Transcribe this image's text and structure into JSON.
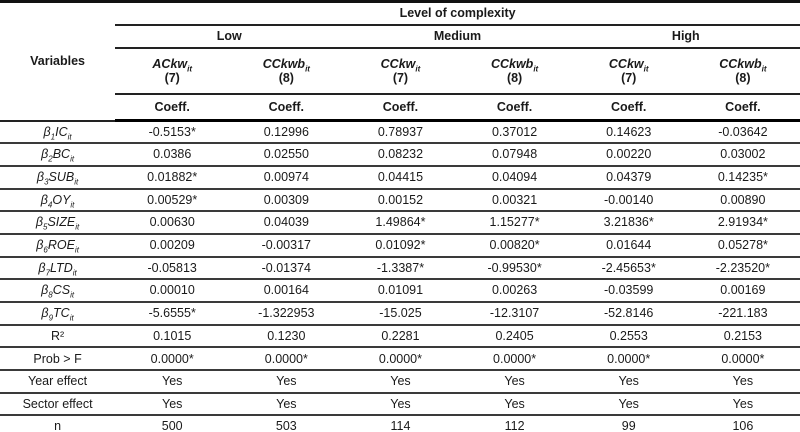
{
  "table": {
    "title": "Level of complexity",
    "variables_header": "Variables",
    "coeff_label": "Coeff.",
    "groups": [
      {
        "label": "Low"
      },
      {
        "label": "Medium"
      },
      {
        "label": "High"
      }
    ],
    "columns": [
      {
        "model": "ACkw",
        "sub": "it",
        "num": "(7)"
      },
      {
        "model": "CCkwb",
        "sub": "it",
        "num": "(8)"
      },
      {
        "model": "CCkw",
        "sub": "it",
        "num": "(7)"
      },
      {
        "model": "CCkwb",
        "sub": "it",
        "num": "(8)"
      },
      {
        "model": "CCkw",
        "sub": "it",
        "num": "(7)"
      },
      {
        "model": "CCkwb",
        "sub": "it",
        "num": "(8)"
      }
    ],
    "rows": [
      {
        "beta": "β",
        "idx": "1",
        "name": "IC",
        "sub": "it",
        "values": [
          "-0.5153*",
          "0.12996",
          "0.78937",
          "0.37012",
          "0.14623",
          "-0.03642"
        ]
      },
      {
        "beta": "β",
        "idx": "2",
        "name": "BC",
        "sub": "it",
        "values": [
          "0.0386",
          "0.02550",
          "0.08232",
          "0.07948",
          "0.00220",
          "0.03002"
        ]
      },
      {
        "beta": "β",
        "idx": "3",
        "name": "SUB",
        "sub": "it",
        "values": [
          "0.01882*",
          "0.00974",
          "0.04415",
          "0.04094",
          "0.04379",
          "0.14235*"
        ]
      },
      {
        "beta": "β",
        "idx": "4",
        "name": "OY",
        "sub": "it",
        "values": [
          "0.00529*",
          "0.00309",
          "0.00152",
          "0.00321",
          "-0.00140",
          "0.00890"
        ]
      },
      {
        "beta": "β",
        "idx": "5",
        "name": "SIZE",
        "sub": "it",
        "values": [
          "0.00630",
          "0.04039",
          "1.49864*",
          "1.15277*",
          "3.21836*",
          "2.91934*"
        ]
      },
      {
        "beta": "β",
        "idx": "6",
        "name": "ROE",
        "sub": "it",
        "values": [
          "0.00209",
          "-0.00317",
          "0.01092*",
          "0.00820*",
          "0.01644",
          "0.05278*"
        ]
      },
      {
        "beta": "β",
        "idx": "7",
        "name": "LTD",
        "sub": "it",
        "values": [
          "-0.05813",
          "-0.01374",
          "-1.3387*",
          "-0.99530*",
          "-2.45653*",
          "-2.23520*"
        ]
      },
      {
        "beta": "β",
        "idx": "8",
        "name": "CS",
        "sub": "it",
        "values": [
          "0.00010",
          "0.00164",
          "0.01091",
          "0.00263",
          "-0.03599",
          "0.00169"
        ]
      },
      {
        "beta": "β",
        "idx": "9",
        "name": "TC",
        "sub": "it",
        "values": [
          "-5.6555*",
          "-1.322953",
          "-15.025",
          "-12.3107",
          "-52.8146",
          "-221.183"
        ]
      },
      {
        "plain": "R²",
        "values": [
          "0.1015",
          "0.1230",
          "0.2281",
          "0.2405",
          "0.2553",
          "0.2153"
        ]
      },
      {
        "plain": "Prob > F",
        "values": [
          "0.0000*",
          "0.0000*",
          "0.0000*",
          "0.0000*",
          "0.0000*",
          "0.0000*"
        ]
      },
      {
        "plain": "Year effect",
        "values": [
          "Yes",
          "Yes",
          "Yes",
          "Yes",
          "Yes",
          "Yes"
        ]
      },
      {
        "plain": "Sector effect",
        "values": [
          "Yes",
          "Yes",
          "Yes",
          "Yes",
          "Yes",
          "Yes"
        ]
      },
      {
        "plain": "n",
        "values": [
          "500",
          "503",
          "114",
          "112",
          "99",
          "106"
        ]
      }
    ]
  }
}
